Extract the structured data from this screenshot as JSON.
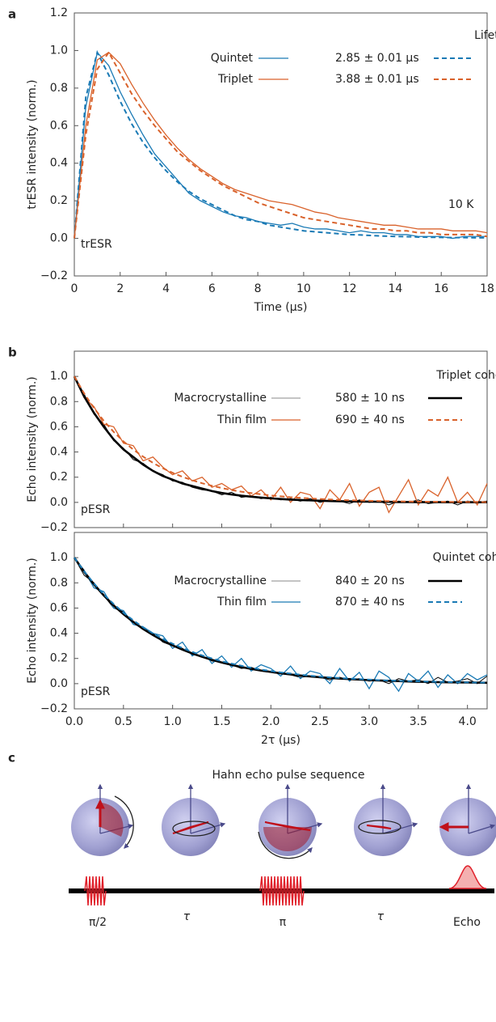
{
  "chart_data": [
    {
      "type": "line",
      "panel_label": "a",
      "ylabel": "trESR intensity (norm.)",
      "xlabel": "Time (μs)",
      "legend_title": "Lifetime",
      "annotations": [
        "10 K",
        "trESR"
      ],
      "x": [
        0,
        0.5,
        1,
        1.5,
        2,
        2.5,
        3,
        3.5,
        4,
        4.5,
        5,
        5.5,
        6,
        6.5,
        7,
        7.5,
        8,
        8.5,
        9,
        9.5,
        10,
        10.5,
        11,
        11.5,
        12,
        12.5,
        13,
        13.5,
        14,
        14.5,
        15,
        15.5,
        16,
        16.5,
        17,
        17.5,
        18
      ],
      "xlim": [
        0,
        18
      ],
      "xticks": [
        0,
        2,
        4,
        6,
        8,
        10,
        12,
        14,
        16,
        18
      ],
      "ylim": [
        -0.2,
        1.2
      ],
      "yticks": [
        {
          "value": -0.2,
          "label": "−0.2"
        },
        {
          "value": 0,
          "label": "0.0"
        },
        0.2,
        0.4,
        0.6,
        0.8,
        {
          "value": 1,
          "label": "1.0"
        },
        1.2
      ],
      "series": [
        {
          "name": "Quintet",
          "color": "#1a7ab5",
          "style": "solid",
          "values": [
            0,
            0.7,
            0.99,
            0.92,
            0.78,
            0.66,
            0.55,
            0.45,
            0.38,
            0.31,
            0.24,
            0.2,
            0.17,
            0.14,
            0.12,
            0.11,
            0.09,
            0.08,
            0.07,
            0.08,
            0.06,
            0.05,
            0.05,
            0.04,
            0.03,
            0.04,
            0.03,
            0.03,
            0.02,
            0.02,
            0.01,
            0.01,
            0.01,
            0,
            0.01,
            0.01,
            0.01
          ]
        },
        {
          "name": "2.85 ± 0.01 μs",
          "color": "#1a7ab5",
          "style": "dashed",
          "values": [
            0,
            0.75,
            0.99,
            0.87,
            0.73,
            0.61,
            0.51,
            0.43,
            0.36,
            0.3,
            0.25,
            0.21,
            0.18,
            0.15,
            0.12,
            0.1,
            0.09,
            0.07,
            0.06,
            0.05,
            0.04,
            0.035,
            0.03,
            0.025,
            0.02,
            0.018,
            0.015,
            0.012,
            0.01,
            0.009,
            0.007,
            0.006,
            0.005,
            0.004,
            0.004,
            0.003,
            0.003
          ]
        },
        {
          "name": "Triplet",
          "color": "#d9622b",
          "style": "solid",
          "values": [
            0,
            0.6,
            0.95,
            0.99,
            0.93,
            0.82,
            0.72,
            0.63,
            0.55,
            0.48,
            0.42,
            0.37,
            0.33,
            0.29,
            0.26,
            0.24,
            0.22,
            0.2,
            0.19,
            0.18,
            0.16,
            0.14,
            0.13,
            0.11,
            0.1,
            0.09,
            0.08,
            0.07,
            0.07,
            0.06,
            0.05,
            0.05,
            0.05,
            0.04,
            0.04,
            0.04,
            0.03
          ]
        },
        {
          "name": "3.88 ± 0.01 μs",
          "color": "#d9622b",
          "style": "dashed",
          "values": [
            0,
            0.55,
            0.9,
            0.99,
            0.88,
            0.77,
            0.68,
            0.6,
            0.53,
            0.46,
            0.41,
            0.36,
            0.32,
            0.28,
            0.25,
            0.22,
            0.19,
            0.17,
            0.15,
            0.13,
            0.11,
            0.1,
            0.09,
            0.08,
            0.07,
            0.06,
            0.05,
            0.05,
            0.04,
            0.04,
            0.03,
            0.03,
            0.02,
            0.02,
            0.02,
            0.02,
            0.01
          ]
        }
      ]
    },
    {
      "type": "line",
      "panel_label": "b",
      "ylabel": "Echo intensity (norm.)",
      "legend_title": "Triplet coherence time",
      "annotations": [
        "pESR"
      ],
      "x": [
        0,
        0.1,
        0.2,
        0.3,
        0.4,
        0.5,
        0.6,
        0.7,
        0.8,
        0.9,
        1,
        1.1,
        1.2,
        1.3,
        1.4,
        1.5,
        1.6,
        1.7,
        1.8,
        1.9,
        2,
        2.1,
        2.2,
        2.3,
        2.4,
        2.5,
        2.6,
        2.7,
        2.8,
        2.9,
        3,
        3.1,
        3.2,
        3.3,
        3.4,
        3.5,
        3.6,
        3.7,
        3.8,
        3.9,
        4,
        4.1,
        4.2
      ],
      "xlim": [
        0,
        4.2
      ],
      "xticks": [
        0,
        0.5,
        1,
        1.5,
        2,
        2.5,
        3,
        3.5,
        4
      ],
      "xtick_labels": false,
      "ylim": [
        -0.2,
        1.2
      ],
      "yticks": [
        {
          "value": -0.2,
          "label": "−0.2"
        },
        {
          "value": 0,
          "label": "0.0"
        },
        0.2,
        0.4,
        0.6,
        0.8,
        {
          "value": 1,
          "label": "1.0"
        }
      ],
      "series": [
        {
          "name": "Macrocrystalline",
          "color": "#000000",
          "style": "thin",
          "values": [
            1,
            0.86,
            0.7,
            0.62,
            0.49,
            0.43,
            0.34,
            0.31,
            0.25,
            0.22,
            0.17,
            0.16,
            0.12,
            0.1,
            0.09,
            0.06,
            0.08,
            0.04,
            0.05,
            0.03,
            0.04,
            0.02,
            0.03,
            0.01,
            0.03,
            0,
            0.02,
            0.01,
            -0.01,
            0.02,
            0,
            0.01,
            -0.02,
            0.01,
            0,
            0.02,
            -0.01,
            0,
            0.01,
            -0.02,
            0.01,
            0,
            0.01
          ]
        },
        {
          "name": "580 ± 10 ns",
          "color": "#000000",
          "style": "thick",
          "values": [
            1,
            0.84,
            0.71,
            0.6,
            0.5,
            0.42,
            0.36,
            0.3,
            0.25,
            0.21,
            0.18,
            0.15,
            0.13,
            0.11,
            0.09,
            0.075,
            0.063,
            0.053,
            0.045,
            0.038,
            0.032,
            0.027,
            0.022,
            0.019,
            0.016,
            0.013,
            0.011,
            0.009,
            0.008,
            0.007,
            0.006,
            0.005,
            0.004,
            0.003,
            0.003,
            0.002,
            0.002,
            0.002,
            0.001,
            0.001,
            0.001,
            0.001,
            0.001
          ]
        },
        {
          "name": "Thin film",
          "color": "#d9622b",
          "style": "solid",
          "values": [
            1,
            0.83,
            0.76,
            0.62,
            0.6,
            0.47,
            0.45,
            0.33,
            0.36,
            0.28,
            0.22,
            0.25,
            0.17,
            0.2,
            0.12,
            0.15,
            0.1,
            0.13,
            0.05,
            0.1,
            0.02,
            0.12,
            0,
            0.08,
            0.06,
            -0.05,
            0.1,
            0.02,
            0.15,
            -0.03,
            0.08,
            0.12,
            -0.08,
            0.05,
            0.18,
            -0.02,
            0.1,
            0.05,
            0.2,
            0,
            0.08,
            -0.02,
            0.15
          ]
        },
        {
          "name": "690 ± 40 ns",
          "color": "#d9622b",
          "style": "dashed",
          "values": [
            1,
            0.865,
            0.749,
            0.647,
            0.56,
            0.484,
            0.419,
            0.363,
            0.314,
            0.271,
            0.235,
            0.203,
            0.176,
            0.152,
            0.132,
            0.114,
            0.098,
            0.085,
            0.074,
            0.064,
            0.055,
            0.048,
            0.041,
            0.036,
            0.031,
            0.027,
            0.023,
            0.02,
            0.017,
            0.015,
            0.013,
            0.011,
            0.01,
            0.008,
            0.007,
            0.006,
            0.005,
            0.005,
            0.004,
            0.003,
            0.003,
            0.003,
            0.002
          ]
        }
      ]
    },
    {
      "type": "line",
      "ylabel": "Echo intensity (norm.)",
      "xlabel": "2τ (μs)",
      "legend_title": "Quintet coherence time",
      "annotations": [
        "pESR"
      ],
      "x": [
        0,
        0.1,
        0.2,
        0.3,
        0.4,
        0.5,
        0.6,
        0.7,
        0.8,
        0.9,
        1,
        1.1,
        1.2,
        1.3,
        1.4,
        1.5,
        1.6,
        1.7,
        1.8,
        1.9,
        2,
        2.1,
        2.2,
        2.3,
        2.4,
        2.5,
        2.6,
        2.7,
        2.8,
        2.9,
        3,
        3.1,
        3.2,
        3.3,
        3.4,
        3.5,
        3.6,
        3.7,
        3.8,
        3.9,
        4,
        4.1,
        4.2
      ],
      "xlim": [
        0,
        4.2
      ],
      "xticks": [
        {
          "value": 0,
          "label": "0.0"
        },
        0.5,
        {
          "value": 1,
          "label": "1.0"
        },
        1.5,
        {
          "value": 2,
          "label": "2.0"
        },
        2.5,
        {
          "value": 3,
          "label": "3.0"
        },
        3.5,
        {
          "value": 4,
          "label": "4.0"
        }
      ],
      "ylim": [
        -0.2,
        1.2
      ],
      "yticks": [
        {
          "value": -0.2,
          "label": "−0.2"
        },
        {
          "value": 0,
          "label": "0.0"
        },
        0.2,
        0.4,
        0.6,
        0.8,
        {
          "value": 1,
          "label": "1.0"
        }
      ],
      "series": [
        {
          "name": "Macrocrystalline",
          "color": "#000000",
          "style": "thin",
          "values": [
            1,
            0.86,
            0.8,
            0.7,
            0.6,
            0.57,
            0.49,
            0.43,
            0.4,
            0.33,
            0.3,
            0.28,
            0.23,
            0.22,
            0.18,
            0.17,
            0.15,
            0.12,
            0.13,
            0.1,
            0.09,
            0.08,
            0.07,
            0.05,
            0.06,
            0.05,
            0.03,
            0.05,
            0.03,
            0.04,
            0.02,
            0.03,
            0,
            0.04,
            0.02,
            0.03,
            0,
            0.05,
            0.01,
            0.02,
            0.04,
            0,
            0.06
          ]
        },
        {
          "name": "840 ± 20 ns",
          "color": "#000000",
          "style": "thick",
          "values": [
            1,
            0.888,
            0.788,
            0.7,
            0.621,
            0.551,
            0.49,
            0.434,
            0.386,
            0.342,
            0.304,
            0.27,
            0.24,
            0.213,
            0.189,
            0.168,
            0.149,
            0.132,
            0.117,
            0.104,
            0.093,
            0.082,
            0.073,
            0.065,
            0.057,
            0.051,
            0.045,
            0.04,
            0.036,
            0.032,
            0.028,
            0.025,
            0.022,
            0.02,
            0.017,
            0.015,
            0.014,
            0.012,
            0.011,
            0.01,
            0.009,
            0.008,
            0.007
          ]
        },
        {
          "name": "Thin film",
          "color": "#1a7ab5",
          "style": "solid",
          "values": [
            1,
            0.9,
            0.76,
            0.73,
            0.6,
            0.58,
            0.47,
            0.45,
            0.4,
            0.38,
            0.28,
            0.33,
            0.22,
            0.27,
            0.16,
            0.22,
            0.13,
            0.2,
            0.1,
            0.15,
            0.12,
            0.06,
            0.14,
            0.04,
            0.1,
            0.08,
            0,
            0.12,
            0.02,
            0.09,
            -0.04,
            0.1,
            0.05,
            -0.06,
            0.08,
            0.02,
            0.1,
            -0.03,
            0.07,
            0,
            0.08,
            0.03,
            0.07
          ]
        },
        {
          "name": "870 ± 40 ns",
          "color": "#1a7ab5",
          "style": "dashed",
          "values": [
            1,
            0.891,
            0.795,
            0.708,
            0.632,
            0.563,
            0.502,
            0.447,
            0.399,
            0.355,
            0.317,
            0.282,
            0.252,
            0.224,
            0.2,
            0.178,
            0.159,
            0.142,
            0.126,
            0.112,
            0.1,
            0.089,
            0.08,
            0.071,
            0.063,
            0.056,
            0.05,
            0.045,
            0.04,
            0.036,
            0.032,
            0.028,
            0.025,
            0.022,
            0.02,
            0.018,
            0.016,
            0.014,
            0.013,
            0.011,
            0.01,
            0.009,
            0.008
          ]
        }
      ]
    }
  ],
  "diagram": {
    "panel_label": "c",
    "title": "Hahn echo pulse sequence",
    "labels": [
      "π/2",
      "τ",
      "π",
      "τ",
      "Echo"
    ]
  }
}
